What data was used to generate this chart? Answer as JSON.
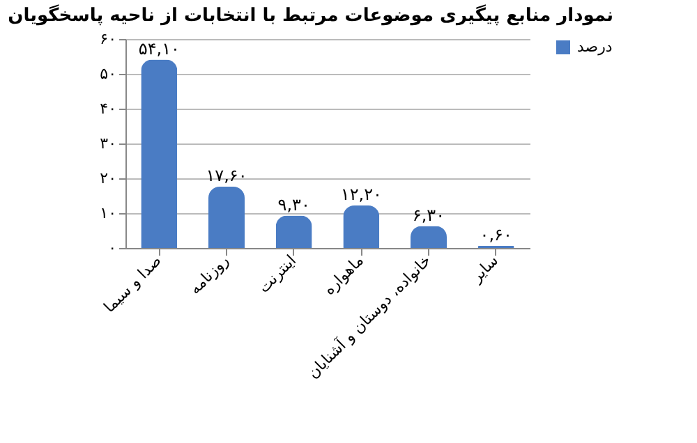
{
  "chart_data": {
    "type": "bar",
    "title": "نمودار منابع پیگیری موضوعات مرتبط با انتخابات از ناحیه پاسخگویان",
    "categories": [
      "صدا و سیما",
      "روزنامه",
      "اینترنت",
      "ماهواره",
      "خانواده، دوستان و آشنایان",
      "سایر"
    ],
    "series": [
      {
        "name": "درصد",
        "color": "#4a7cc4",
        "values": [
          54.1,
          17.6,
          9.3,
          12.2,
          6.3,
          0.6
        ],
        "value_labels": [
          "۵۴,۱۰",
          "۱۷,۶۰",
          "۹,۳۰",
          "۱۲,۲۰",
          "۶,۳۰",
          "۰,۶۰"
        ]
      }
    ],
    "ylim": [
      0,
      60
    ],
    "yticks": [
      {
        "value": 0,
        "label": "۰"
      },
      {
        "value": 10,
        "label": "۱۰"
      },
      {
        "value": 20,
        "label": "۲۰"
      },
      {
        "value": 30,
        "label": "۳۰"
      },
      {
        "value": 40,
        "label": "۴۰"
      },
      {
        "value": 50,
        "label": "۵۰"
      },
      {
        "value": 60,
        "label": "۶۰"
      }
    ],
    "grid": "y",
    "legend": "right"
  }
}
